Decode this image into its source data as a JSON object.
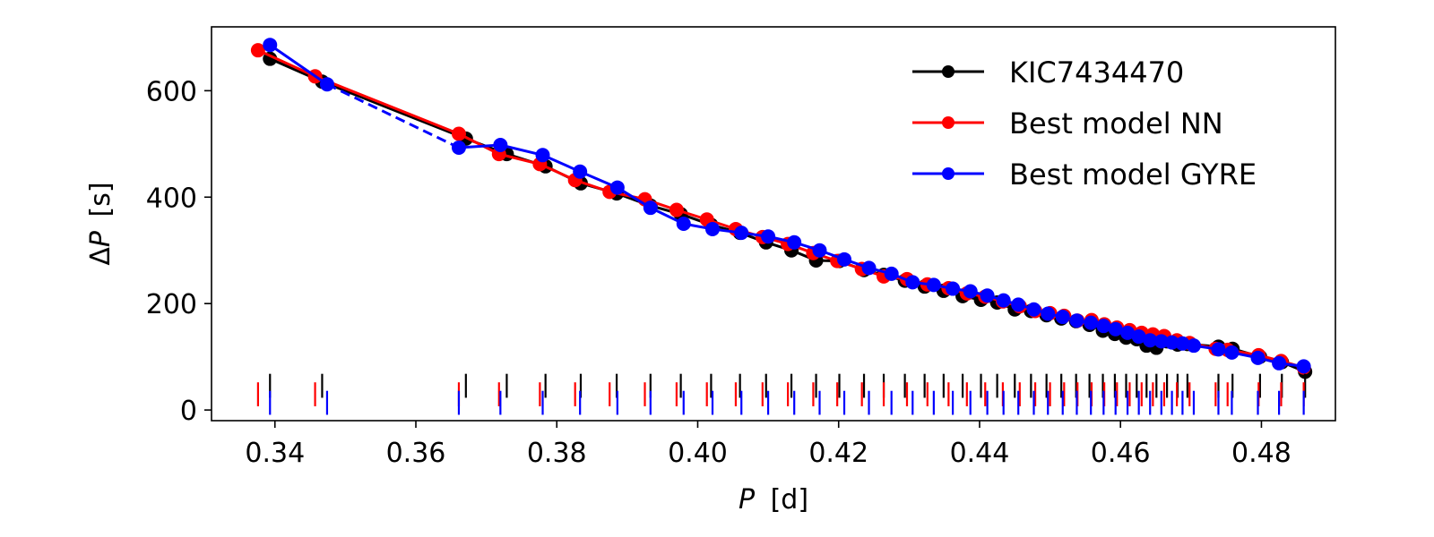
{
  "chart_data": {
    "type": "line",
    "title": "",
    "xlabel_var": "P",
    "xlabel_unit": "[d]",
    "ylabel_prefix": "Δ",
    "ylabel_var": "P",
    "ylabel_unit": "[s]",
    "xlim": [
      0.331,
      0.4905
    ],
    "ylim": [
      -20,
      720
    ],
    "xticks": [
      0.34,
      0.36,
      0.38,
      0.4,
      0.42,
      0.44,
      0.46,
      0.48
    ],
    "xtick_labels": [
      "0.34",
      "0.36",
      "0.38",
      "0.40",
      "0.42",
      "0.44",
      "0.46",
      "0.48"
    ],
    "yticks": [
      0,
      200,
      400,
      600
    ],
    "ytick_labels": [
      "0",
      "200",
      "400",
      "600"
    ],
    "legend_position": "upper right",
    "series": [
      {
        "name": "KIC7434470",
        "color": "#000000",
        "marker": "circle",
        "x": [
          0.3393,
          0.3467,
          0.3671,
          0.3729,
          0.3784,
          0.3834,
          0.3885,
          0.3933,
          0.3976,
          0.4019,
          0.406,
          0.4097,
          0.4133,
          0.4168,
          0.4201,
          0.4236,
          0.4264,
          0.4294,
          0.4322,
          0.4349,
          0.4376,
          0.4402,
          0.4425,
          0.445,
          0.4473,
          0.4495,
          0.4516,
          0.4537,
          0.4556,
          0.4575,
          0.4592,
          0.4608,
          0.4623,
          0.4637,
          0.4651,
          0.4666,
          0.4681,
          0.4695,
          0.4739,
          0.4759,
          0.4798,
          0.4829,
          0.4862
        ],
        "y": [
          660,
          617,
          510,
          481,
          458,
          426,
          407,
          384,
          368,
          348,
          333,
          315,
          300,
          281,
          280,
          263,
          254,
          243,
          232,
          224,
          214,
          207,
          202,
          189,
          186,
          178,
          172,
          167,
          160,
          149,
          143,
          136,
          133,
          121,
          117,
          129,
          123,
          124,
          119,
          115,
          100,
          90,
          72
        ],
        "line_breaks_after": []
      },
      {
        "name": "Best model NN",
        "color": "#ff0000",
        "marker": "circle",
        "x": [
          0.3376,
          0.3457,
          0.3661,
          0.3718,
          0.3776,
          0.3826,
          0.3875,
          0.3925,
          0.397,
          0.4013,
          0.4054,
          0.4092,
          0.4128,
          0.4164,
          0.4198,
          0.4233,
          0.4264,
          0.4297,
          0.4326,
          0.4356,
          0.4382,
          0.4408,
          0.4433,
          0.4457,
          0.4479,
          0.45,
          0.452,
          0.4539,
          0.4559,
          0.4577,
          0.4595,
          0.4613,
          0.463,
          0.4646,
          0.4662,
          0.468,
          0.4698,
          0.4735,
          0.4752,
          0.4796,
          0.4828,
          0.486
        ],
        "y": [
          676,
          627,
          519,
          481,
          462,
          432,
          410,
          396,
          376,
          358,
          340,
          325,
          312,
          295,
          280,
          265,
          251,
          246,
          236,
          229,
          219,
          213,
          204,
          195,
          186,
          182,
          177,
          168,
          169,
          161,
          155,
          150,
          145,
          142,
          139,
          131,
          126,
          115,
          113,
          103,
          92,
          80
        ],
        "line_breaks_after": []
      },
      {
        "name": "Best model GYRE",
        "color": "#0000ff",
        "marker": "circle",
        "x": [
          0.3393,
          0.3474,
          0.3661,
          0.372,
          0.378,
          0.3833,
          0.3886,
          0.3933,
          0.398,
          0.4021,
          0.4062,
          0.41,
          0.4137,
          0.4173,
          0.4208,
          0.4243,
          0.4275,
          0.4305,
          0.4335,
          0.4362,
          0.4387,
          0.4411,
          0.4434,
          0.4455,
          0.4477,
          0.4497,
          0.4518,
          0.4538,
          0.4558,
          0.4576,
          0.4593,
          0.461,
          0.4626,
          0.4642,
          0.4658,
          0.4673,
          0.4688,
          0.4704,
          0.4739,
          0.4758,
          0.4795,
          0.4825,
          0.486
        ],
        "y": [
          686,
          612,
          493,
          498,
          479,
          448,
          418,
          380,
          350,
          340,
          333,
          326,
          315,
          300,
          283,
          267,
          256,
          240,
          235,
          228,
          223,
          215,
          206,
          198,
          189,
          181,
          175,
          168,
          164,
          158,
          152,
          145,
          138,
          131,
          129,
          127,
          125,
          121,
          114,
          108,
          98,
          88,
          82
        ],
        "line_breaks_after": [
          1
        ]
      }
    ]
  }
}
